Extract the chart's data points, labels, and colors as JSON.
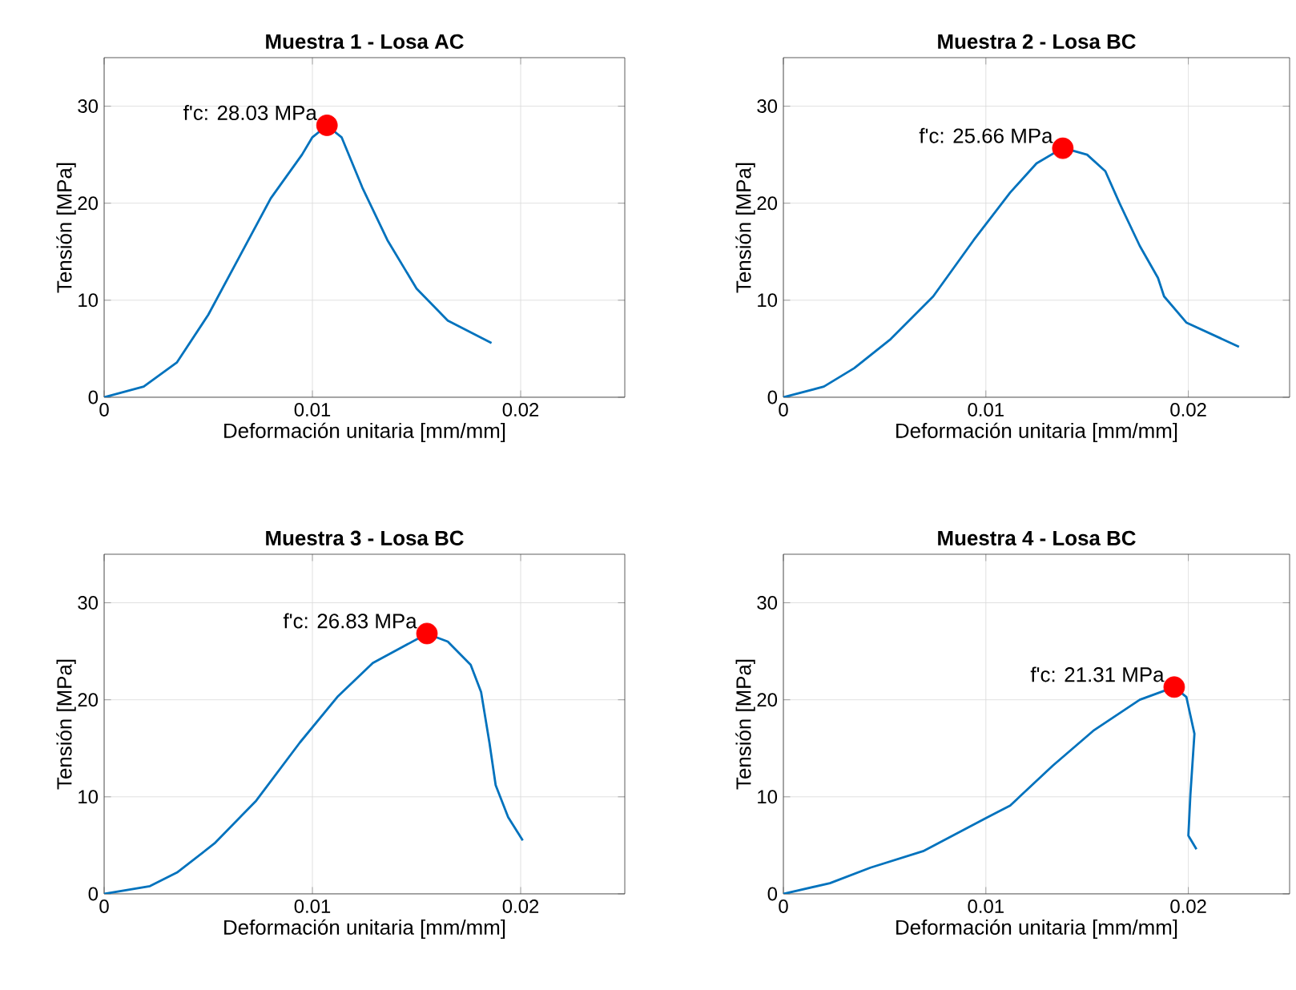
{
  "chart_data": [
    {
      "type": "line",
      "title": "Muestra 1 - Losa AC",
      "xlabel": "Deformación unitaria [mm/mm]",
      "ylabel": "Tensión [MPa]",
      "xlim": [
        0,
        0.025
      ],
      "ylim": [
        0,
        35
      ],
      "xticks": [
        0,
        0.01,
        0.02
      ],
      "yticks": [
        0,
        10,
        20,
        30
      ],
      "grid": true,
      "series": [
        {
          "color": "#0072bd",
          "x": [
            0,
            0.0019,
            0.0035,
            0.005,
            0.0065,
            0.008,
            0.0095,
            0.01,
            0.0107,
            0.0114,
            0.0124,
            0.0136,
            0.015,
            0.0165,
            0.0186
          ],
          "values": [
            0,
            1.1,
            3.6,
            8.5,
            14.5,
            20.5,
            25,
            26.8,
            28,
            26.8,
            21.6,
            16.2,
            11.2,
            7.9,
            5.6
          ]
        },
        {
          "type": "scatter",
          "marker": "circle",
          "color": "#ff0000",
          "x": [
            0.0107
          ],
          "values": [
            28.03
          ]
        }
      ],
      "annotations": [
        {
          "text": "f'c: 28.03 MPa",
          "x": 0.0107,
          "y": 28.03
        }
      ]
    },
    {
      "type": "line",
      "title": "Muestra 2 - Losa BC",
      "xlabel": "Deformación unitaria [mm/mm]",
      "ylabel": "Tensión [MPa]",
      "xlim": [
        0,
        0.025
      ],
      "ylim": [
        0,
        35
      ],
      "xticks": [
        0,
        0.01,
        0.02
      ],
      "yticks": [
        0,
        10,
        20,
        30
      ],
      "grid": true,
      "series": [
        {
          "color": "#0072bd",
          "x": [
            0,
            0.002,
            0.0035,
            0.0053,
            0.0074,
            0.0094,
            0.0112,
            0.0125,
            0.0138,
            0.015,
            0.0159,
            0.0166,
            0.0176,
            0.0185,
            0.0188,
            0.0199,
            0.0225
          ],
          "values": [
            0,
            1.1,
            3,
            6,
            10.4,
            16.2,
            21.1,
            24.1,
            25.7,
            25,
            23.3,
            20,
            15.6,
            12.3,
            10.4,
            7.7,
            5.2
          ]
        },
        {
          "type": "scatter",
          "marker": "circle",
          "color": "#ff0000",
          "x": [
            0.0138
          ],
          "values": [
            25.66
          ]
        }
      ],
      "annotations": [
        {
          "text": "f'c: 25.66 MPa",
          "x": 0.0138,
          "y": 25.66
        }
      ]
    },
    {
      "type": "line",
      "title": "Muestra 3 - Losa BC",
      "xlabel": "Deformación unitaria [mm/mm]",
      "ylabel": "Tensión [MPa]",
      "xlim": [
        0,
        0.025
      ],
      "ylim": [
        0,
        35
      ],
      "xticks": [
        0,
        0.01,
        0.02
      ],
      "yticks": [
        0,
        10,
        20,
        30
      ],
      "grid": true,
      "series": [
        {
          "color": "#0072bd",
          "x": [
            0,
            0.0022,
            0.0035,
            0.0053,
            0.0073,
            0.0094,
            0.0112,
            0.0129,
            0.0155,
            0.0165,
            0.0176,
            0.0181,
            0.0185,
            0.0188,
            0.0194,
            0.0201
          ],
          "values": [
            0,
            0.8,
            2.2,
            5.2,
            9.6,
            15.6,
            20.3,
            23.8,
            26.8,
            26,
            23.6,
            20.8,
            15.6,
            11.2,
            7.9,
            5.5
          ]
        },
        {
          "type": "scatter",
          "marker": "circle",
          "color": "#ff0000",
          "x": [
            0.0155
          ],
          "values": [
            26.83
          ]
        }
      ],
      "annotations": [
        {
          "text": "f'c: 26.83 MPa",
          "x": 0.0155,
          "y": 26.83
        }
      ]
    },
    {
      "type": "line",
      "title": "Muestra 4 - Losa BC",
      "xlabel": "Deformación unitaria [mm/mm]",
      "ylabel": "Tensión [MPa]",
      "xlim": [
        0,
        0.025
      ],
      "ylim": [
        0,
        35
      ],
      "xticks": [
        0,
        0.01,
        0.02
      ],
      "yticks": [
        0,
        10,
        20,
        30
      ],
      "grid": true,
      "series": [
        {
          "color": "#0072bd",
          "x": [
            0,
            0.0023,
            0.0043,
            0.0069,
            0.0099,
            0.0112,
            0.0133,
            0.0153,
            0.0176,
            0.0193,
            0.0199,
            0.0203,
            0.0201,
            0.02,
            0.0204
          ],
          "values": [
            0,
            1.1,
            2.7,
            4.4,
            7.7,
            9.1,
            13.2,
            16.8,
            20,
            21.3,
            20.3,
            16.5,
            10.2,
            6,
            4.6
          ]
        },
        {
          "type": "scatter",
          "marker": "circle",
          "color": "#ff0000",
          "x": [
            0.0193
          ],
          "values": [
            21.31
          ]
        }
      ],
      "annotations": [
        {
          "text": "f'c: 21.31 MPa",
          "x": 0.0193,
          "y": 21.31
        }
      ]
    }
  ]
}
